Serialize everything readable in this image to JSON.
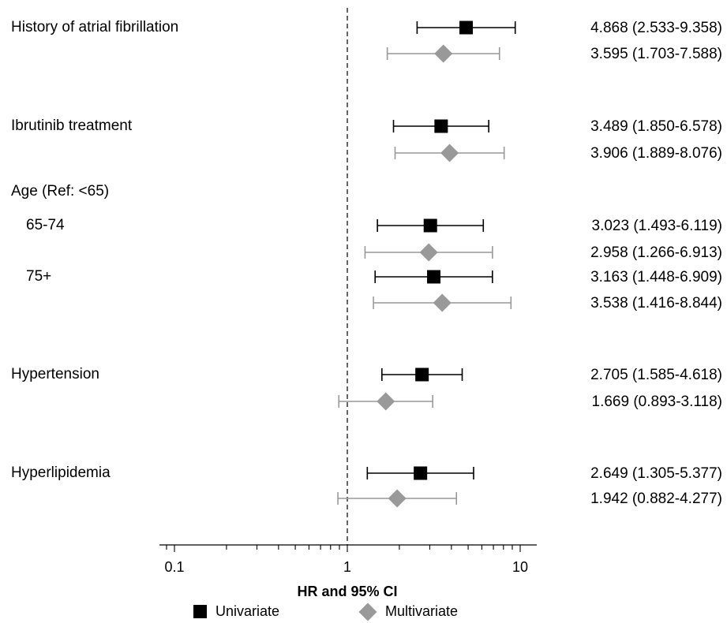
{
  "chart_data": {
    "type": "forest",
    "scale": "log",
    "xlabel": "HR and 95% CI",
    "xlim": [
      0.06,
      13
    ],
    "xticks": [
      0.1,
      1,
      10
    ],
    "xtick_labels": [
      "0.1",
      "1",
      "10"
    ],
    "reference_line": 1,
    "legend": {
      "placement": "bottom-center",
      "entries": [
        {
          "name": "Univariate",
          "marker": "square",
          "color": "#000000"
        },
        {
          "name": "Multivariate",
          "marker": "diamond",
          "color": "#999999"
        }
      ]
    },
    "headers": [
      {
        "label": "Age (Ref: <65)"
      }
    ],
    "rows": [
      {
        "group": "History of atrial fibrillation",
        "label": "History of atrial fibrillation",
        "series": "Univariate",
        "hr": 4.868,
        "lo": 2.533,
        "hi": 9.358,
        "text": "4.868 (2.533-9.358)"
      },
      {
        "group": "History of atrial fibrillation",
        "label": "",
        "series": "Multivariate",
        "hr": 3.595,
        "lo": 1.703,
        "hi": 7.588,
        "text": "3.595  (1.703-7.588)"
      },
      {
        "group": "Ibrutinib treatment",
        "label": "Ibrutinib treatment",
        "series": "Univariate",
        "hr": 3.489,
        "lo": 1.85,
        "hi": 6.578,
        "text": "3.489  (1.850-6.578)"
      },
      {
        "group": "Ibrutinib treatment",
        "label": "",
        "series": "Multivariate",
        "hr": 3.906,
        "lo": 1.889,
        "hi": 8.076,
        "text": "3.906  (1.889-8.076)"
      },
      {
        "group": "Age 65-74",
        "label": "65-74",
        "series": "Univariate",
        "hr": 3.023,
        "lo": 1.493,
        "hi": 6.119,
        "text": "3.023  (1.493-6.119)"
      },
      {
        "group": "Age 65-74",
        "label": "",
        "series": "Multivariate",
        "hr": 2.958,
        "lo": 1.266,
        "hi": 6.913,
        "text": "2.958  (1.266-6.913)"
      },
      {
        "group": "Age 75+",
        "label": "75+",
        "series": "Univariate",
        "hr": 3.163,
        "lo": 1.448,
        "hi": 6.909,
        "text": "3.163  (1.448-6.909)"
      },
      {
        "group": "Age 75+",
        "label": "",
        "series": "Multivariate",
        "hr": 3.538,
        "lo": 1.416,
        "hi": 8.844,
        "text": "3.538  (1.416-8.844)"
      },
      {
        "group": "Hypertension",
        "label": "Hypertension",
        "series": "Univariate",
        "hr": 2.705,
        "lo": 1.585,
        "hi": 4.618,
        "text": "2.705  (1.585-4.618)"
      },
      {
        "group": "Hypertension",
        "label": "",
        "series": "Multivariate",
        "hr": 1.669,
        "lo": 0.893,
        "hi": 3.118,
        "text": "1.669  (0.893-3.118)"
      },
      {
        "group": "Hyperlipidemia",
        "label": "Hyperlipidemia",
        "series": "Univariate",
        "hr": 2.649,
        "lo": 1.305,
        "hi": 5.377,
        "text": "2.649  (1.305-5.377)"
      },
      {
        "group": "Hyperlipidemia",
        "label": "",
        "series": "Multivariate",
        "hr": 1.942,
        "lo": 0.882,
        "hi": 4.277,
        "text": "1.942  (0.882-4.277)"
      }
    ]
  }
}
